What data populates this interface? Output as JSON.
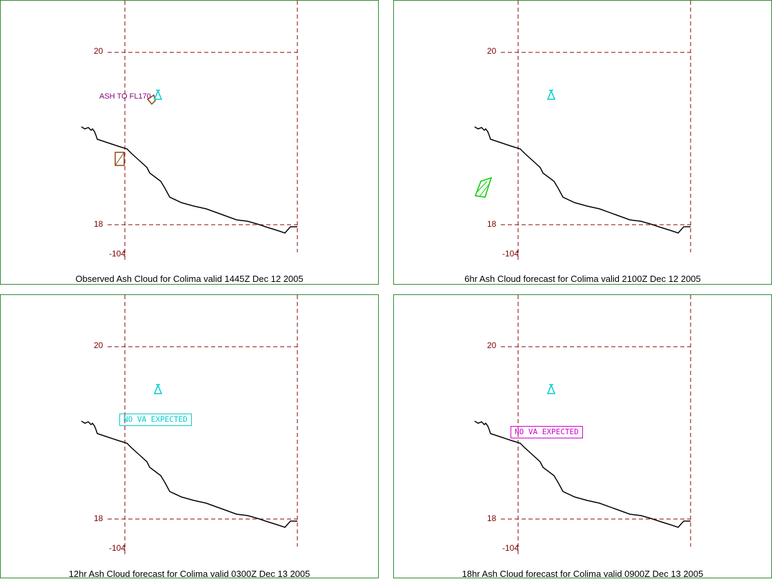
{
  "panels": [
    {
      "caption": "Observed Ash Cloud for Colima valid 1445Z Dec 12 2005",
      "lat_top": "20",
      "lat_bottom": "18",
      "lon": "-104",
      "annotation": "ASH TO FL170",
      "annotation_color": "#800080",
      "ash_polygon_color": "#8b4513"
    },
    {
      "caption": "6hr Ash Cloud forecast for Colima valid 2100Z Dec 12 2005",
      "lat_top": "20",
      "lat_bottom": "18",
      "lon": "-104",
      "ash_polygon_color": "#00cc00"
    },
    {
      "caption": "12hr Ash Cloud forecast for Colima valid 0300Z Dec 13 2005",
      "lat_top": "20",
      "lat_bottom": "18",
      "lon": "-104",
      "annotation": "NO VA EXPECTED",
      "annotation_color": "#00cccc"
    },
    {
      "caption": "18hr Ash Cloud forecast for Colima valid 0900Z Dec 13 2005",
      "lat_top": "20",
      "lat_bottom": "18",
      "lon": "-104",
      "annotation": "NO VA EXPECTED",
      "annotation_color": "#cc00cc"
    }
  ],
  "colors": {
    "frame": "#2e8b2e",
    "gridline": "#8b0000",
    "coastline": "#000000",
    "volcano": "#00cccc"
  },
  "icons": {
    "volcano": "volcano-icon"
  }
}
